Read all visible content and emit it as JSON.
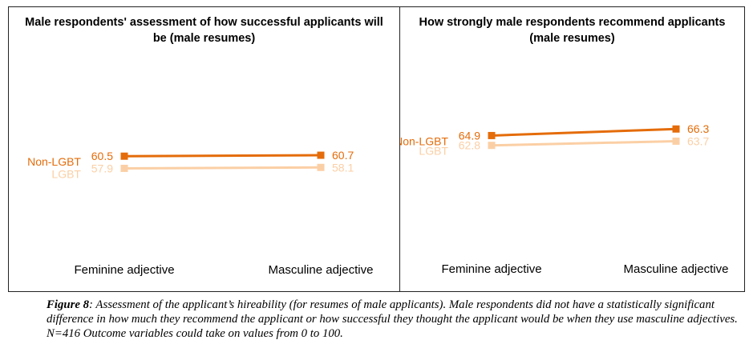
{
  "colors": {
    "non_lgbt": "#e46c0a",
    "lgbt": "#fbcfa5"
  },
  "chart_data": [
    {
      "type": "line",
      "title": "Male respondents' assessment of how successful applicants will be (male resumes)",
      "categories": [
        "Feminine adjective",
        "Masculine adjective"
      ],
      "series": [
        {
          "name": "Non-LGBT",
          "values": [
            60.5,
            60.7
          ],
          "labels": [
            "60.5",
            "60.7"
          ]
        },
        {
          "name": "LGBT",
          "values": [
            57.9,
            58.1
          ],
          "labels": [
            "57.9",
            "58.1"
          ]
        }
      ],
      "ylim": [
        45,
        80
      ],
      "grid": false,
      "legend": "inline-left"
    },
    {
      "type": "line",
      "title": "How strongly male respondents recommend applicants (male resumes)",
      "categories": [
        "Feminine adjective",
        "Masculine adjective"
      ],
      "series": [
        {
          "name": "Non-LGBT",
          "values": [
            64.9,
            66.3
          ],
          "labels": [
            "64.9",
            "66.3"
          ]
        },
        {
          "name": "LGBT",
          "values": [
            62.8,
            63.7
          ],
          "labels": [
            "62.8",
            "63.7"
          ]
        }
      ],
      "ylim": [
        45,
        80
      ],
      "grid": false,
      "legend": "inline-left"
    }
  ],
  "caption": {
    "label": "Figure 8",
    "text": ": Assessment of the applicant’s hireability (for resumes of male applicants). Male respondents did not have a statistically significant difference in how much they recommend the applicant or how successful they thought the applicant would be when they use masculine adjectives. N=416 Outcome variables could take on values from 0 to 100."
  }
}
